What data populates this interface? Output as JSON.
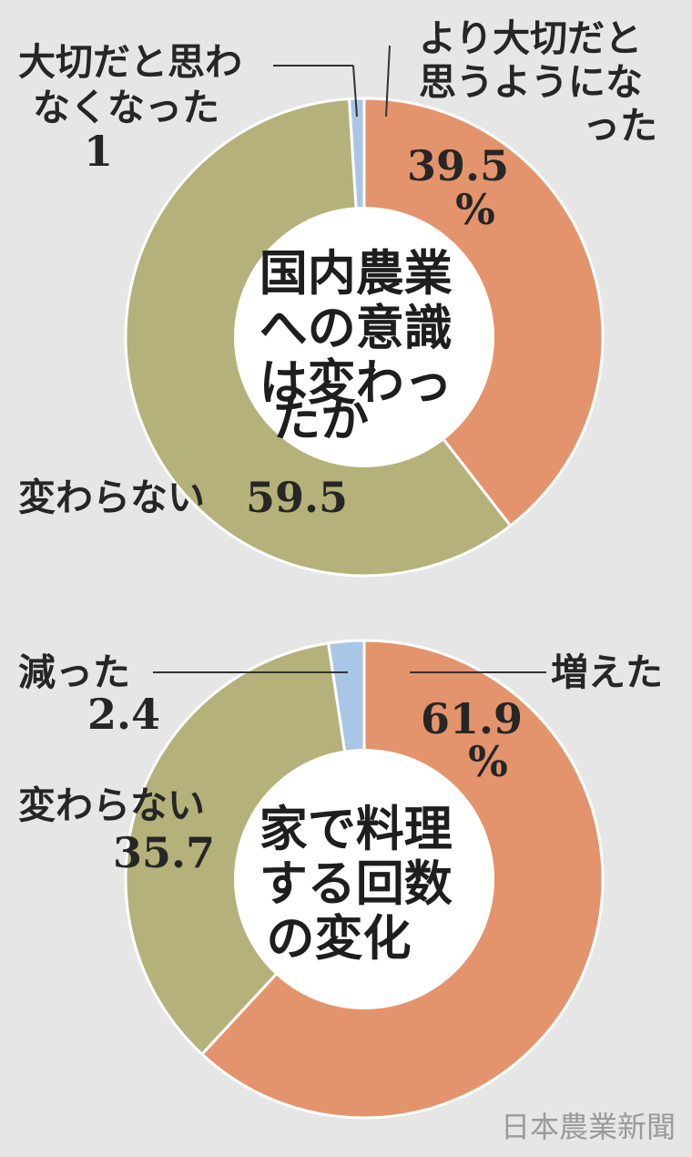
{
  "chart_data": [
    {
      "type": "pie",
      "center_title": [
        "国内農業",
        "への意識",
        "は変わっ",
        "たか"
      ],
      "unit": "%",
      "slices": [
        {
          "label": [
            "より大切だと",
            "思うようにな",
            "った"
          ],
          "value": 39.5,
          "value_text": "39.5",
          "color": "#e3946c"
        },
        {
          "label": [
            "変わらない"
          ],
          "value": 59.5,
          "value_text": "59.5",
          "color": "#b4b27a"
        },
        {
          "label": [
            "大切だと思わ",
            "なくなった"
          ],
          "value": 1,
          "value_text": "1",
          "color": "#a9c6e6"
        }
      ]
    },
    {
      "type": "pie",
      "center_title": [
        "家で料理",
        "する回数",
        "の変化"
      ],
      "unit": "%",
      "slices": [
        {
          "label": [
            "増えた"
          ],
          "value": 61.9,
          "value_text": "61.9",
          "color": "#e3946c"
        },
        {
          "label": [
            "変わらない"
          ],
          "value": 35.7,
          "value_text": "35.7",
          "color": "#b4b27a"
        },
        {
          "label": [
            "減った"
          ],
          "value": 2.4,
          "value_text": "2.4",
          "color": "#a9c6e6"
        }
      ]
    }
  ],
  "credit": "日本農業新聞"
}
